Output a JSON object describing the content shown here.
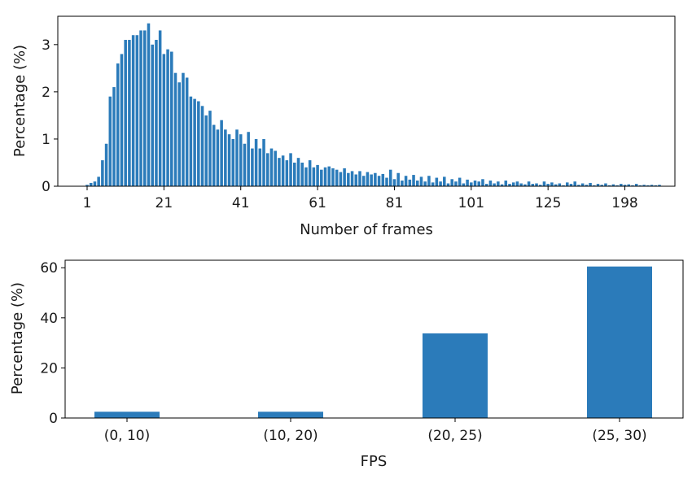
{
  "chart_data": [
    {
      "type": "bar",
      "xlabel": "Number of frames",
      "ylabel": "Percentage (%)",
      "ylim": [
        0,
        3.6
      ],
      "yticks": [
        0,
        1,
        2,
        3
      ],
      "grid": false,
      "bar_color": "#2b7bba",
      "tick_labels": [
        "1",
        "21",
        "41",
        "61",
        "81",
        "101",
        "125",
        "198"
      ],
      "x": [
        1,
        2,
        3,
        4,
        5,
        6,
        7,
        8,
        9,
        10,
        11,
        12,
        13,
        14,
        15,
        16,
        17,
        18,
        19,
        20,
        21,
        22,
        23,
        24,
        25,
        26,
        27,
        28,
        29,
        30,
        31,
        32,
        33,
        34,
        35,
        36,
        37,
        38,
        39,
        40,
        41,
        42,
        43,
        44,
        45,
        46,
        47,
        48,
        49,
        50,
        51,
        52,
        53,
        54,
        55,
        56,
        57,
        58,
        59,
        60,
        61,
        62,
        63,
        64,
        65,
        66,
        67,
        68,
        69,
        70,
        71,
        72,
        73,
        74,
        75,
        76,
        77,
        78,
        79,
        80,
        81,
        82,
        83,
        84,
        85,
        86,
        87,
        88,
        89,
        90,
        91,
        92,
        93,
        94,
        95,
        96,
        97,
        98,
        99,
        100,
        101,
        102,
        103,
        104,
        105,
        106,
        107,
        108,
        109,
        110,
        111,
        112,
        113,
        114,
        115,
        116,
        117,
        118,
        119,
        120,
        121,
        122,
        123,
        124,
        125,
        126,
        127,
        128,
        129,
        130,
        131,
        132,
        133,
        134,
        135,
        136,
        137,
        138,
        139,
        140,
        141,
        142,
        143,
        144,
        145,
        146,
        147,
        148,
        149,
        150
      ],
      "values": [
        0.03,
        0.07,
        0.1,
        0.2,
        0.55,
        0.9,
        1.9,
        2.1,
        2.6,
        2.8,
        3.1,
        3.1,
        3.2,
        3.2,
        3.3,
        3.3,
        3.45,
        3.0,
        3.1,
        3.3,
        2.8,
        2.9,
        2.85,
        2.4,
        2.2,
        2.4,
        2.3,
        1.9,
        1.85,
        1.8,
        1.7,
        1.5,
        1.6,
        1.3,
        1.2,
        1.4,
        1.2,
        1.1,
        1.0,
        1.2,
        1.1,
        0.9,
        1.15,
        0.8,
        1.0,
        0.8,
        1.0,
        0.7,
        0.8,
        0.75,
        0.6,
        0.65,
        0.55,
        0.7,
        0.5,
        0.6,
        0.5,
        0.4,
        0.55,
        0.4,
        0.45,
        0.35,
        0.4,
        0.42,
        0.38,
        0.35,
        0.3,
        0.38,
        0.28,
        0.32,
        0.25,
        0.32,
        0.22,
        0.3,
        0.25,
        0.28,
        0.22,
        0.26,
        0.18,
        0.35,
        0.15,
        0.28,
        0.12,
        0.22,
        0.14,
        0.24,
        0.12,
        0.2,
        0.1,
        0.22,
        0.08,
        0.18,
        0.1,
        0.2,
        0.06,
        0.15,
        0.1,
        0.18,
        0.06,
        0.14,
        0.08,
        0.12,
        0.1,
        0.15,
        0.05,
        0.12,
        0.06,
        0.1,
        0.04,
        0.12,
        0.05,
        0.08,
        0.1,
        0.06,
        0.04,
        0.1,
        0.05,
        0.06,
        0.03,
        0.1,
        0.05,
        0.08,
        0.04,
        0.06,
        0.02,
        0.08,
        0.05,
        0.1,
        0.03,
        0.06,
        0.03,
        0.07,
        0.02,
        0.05,
        0.03,
        0.06,
        0.02,
        0.04,
        0.02,
        0.05,
        0.03,
        0.04,
        0.02,
        0.05,
        0.02,
        0.03,
        0.02,
        0.03,
        0.02,
        0.03
      ]
    },
    {
      "type": "bar",
      "xlabel": "FPS",
      "ylabel": "Percentage (%)",
      "ylim": [
        0,
        63
      ],
      "yticks": [
        0,
        20,
        40,
        60
      ],
      "grid": false,
      "bar_color": "#2b7bba",
      "categories": [
        "(0, 10)",
        "(10, 20)",
        "(20, 25)",
        "(25, 30)"
      ],
      "values": [
        2.5,
        2.5,
        33.8,
        60.5
      ]
    }
  ]
}
